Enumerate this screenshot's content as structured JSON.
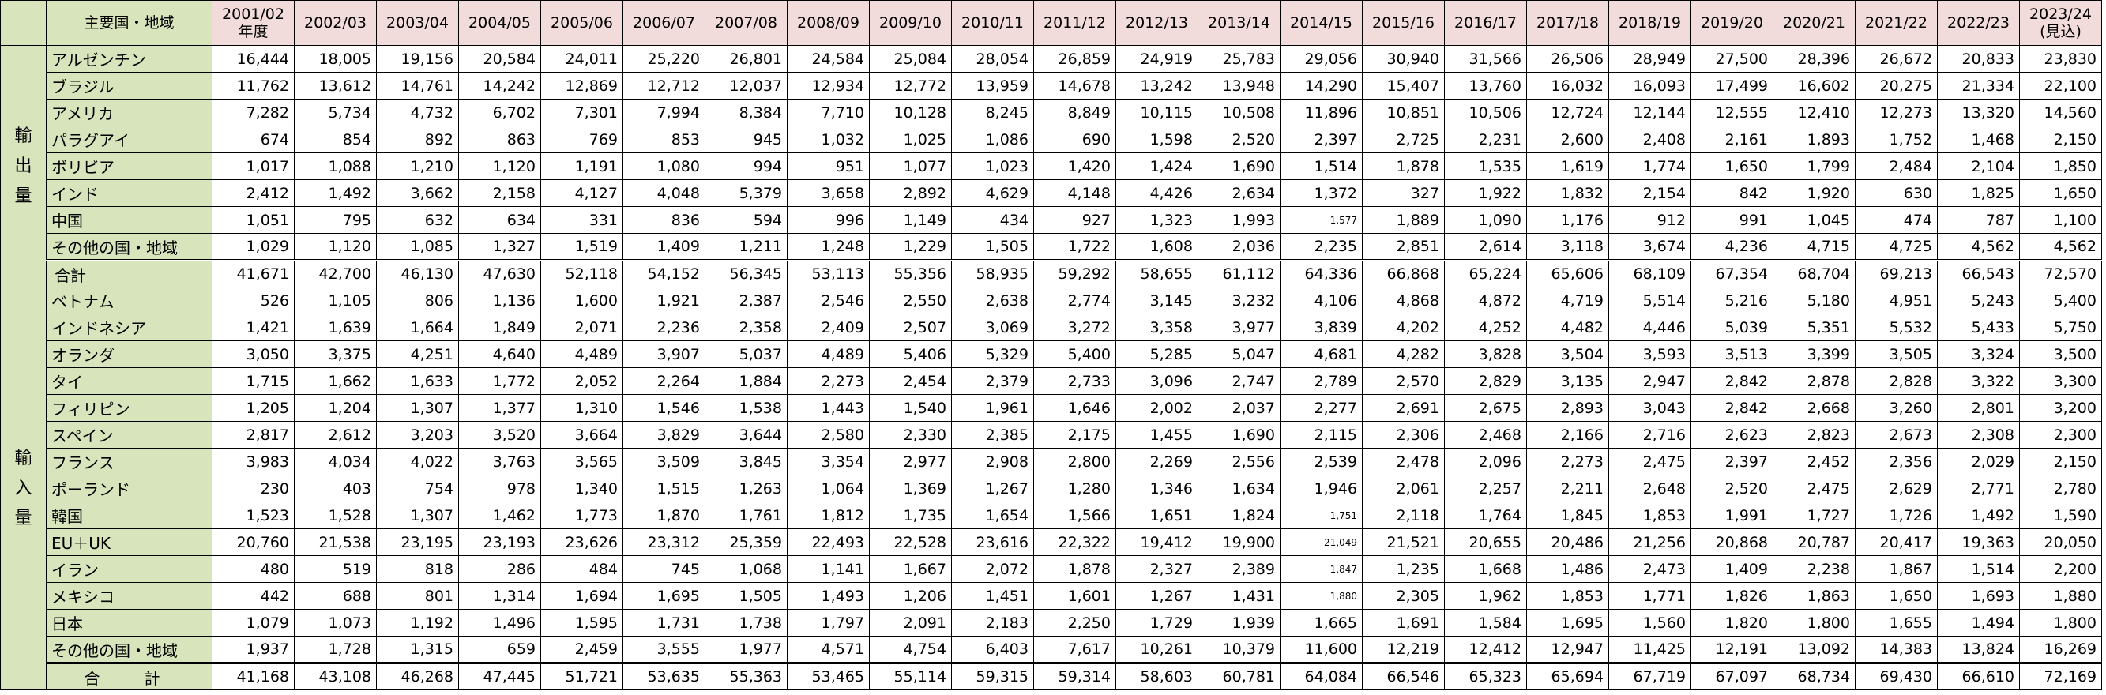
{
  "header": {
    "region_label": "主要国・地域",
    "years": [
      "2001/02\n年度",
      "2002/03",
      "2003/04",
      "2004/05",
      "2005/06",
      "2006/07",
      "2007/08",
      "2008/09",
      "2009/10",
      "2010/11",
      "2011/12",
      "2012/13",
      "2013/14",
      "2014/15",
      "2015/16",
      "2016/17",
      "2017/18",
      "2018/19",
      "2019/20",
      "2020/21",
      "2021/22",
      "2022/23",
      "2023/24\n(見込)"
    ]
  },
  "groups": [
    {
      "label": "輸\n出\n量",
      "rows": [
        {
          "name": "アルゼンチン",
          "values": [
            "16,444",
            "18,005",
            "19,156",
            "20,584",
            "24,011",
            "25,220",
            "26,801",
            "24,584",
            "25,084",
            "28,054",
            "26,859",
            "24,919",
            "25,783",
            "29,056",
            "30,940",
            "31,566",
            "26,506",
            "28,949",
            "27,500",
            "28,396",
            "26,672",
            "20,833",
            "23,830"
          ]
        },
        {
          "name": "ブラジル",
          "values": [
            "11,762",
            "13,612",
            "14,761",
            "14,242",
            "12,869",
            "12,712",
            "12,037",
            "12,934",
            "12,772",
            "13,959",
            "14,678",
            "13,242",
            "13,948",
            "14,290",
            "15,407",
            "13,760",
            "16,032",
            "16,093",
            "17,499",
            "16,602",
            "20,275",
            "21,334",
            "22,100"
          ]
        },
        {
          "name": "アメリカ",
          "values": [
            "7,282",
            "5,734",
            "4,732",
            "6,702",
            "7,301",
            "7,994",
            "8,384",
            "7,710",
            "10,128",
            "8,245",
            "8,849",
            "10,115",
            "10,508",
            "11,896",
            "10,851",
            "10,506",
            "12,724",
            "12,144",
            "12,555",
            "12,410",
            "12,273",
            "13,320",
            "14,560"
          ]
        },
        {
          "name": "パラグアイ",
          "values": [
            "674",
            "854",
            "892",
            "863",
            "769",
            "853",
            "945",
            "1,032",
            "1,025",
            "1,086",
            "690",
            "1,598",
            "2,520",
            "2,397",
            "2,725",
            "2,231",
            "2,600",
            "2,408",
            "2,161",
            "1,893",
            "1,752",
            "1,468",
            "2,150"
          ]
        },
        {
          "name": "ボリビア",
          "values": [
            "1,017",
            "1,088",
            "1,210",
            "1,120",
            "1,191",
            "1,080",
            "994",
            "951",
            "1,077",
            "1,023",
            "1,420",
            "1,424",
            "1,690",
            "1,514",
            "1,878",
            "1,535",
            "1,619",
            "1,774",
            "1,650",
            "1,799",
            "2,484",
            "2,104",
            "1,850"
          ]
        },
        {
          "name": "インド",
          "values": [
            "2,412",
            "1,492",
            "3,662",
            "2,158",
            "4,127",
            "4,048",
            "5,379",
            "3,658",
            "2,892",
            "4,629",
            "4,148",
            "4,426",
            "2,634",
            "1,372",
            "327",
            "1,922",
            "1,832",
            "2,154",
            "842",
            "1,920",
            "630",
            "1,825",
            "1,650"
          ]
        },
        {
          "name": "中国",
          "values": [
            "1,051",
            "795",
            "632",
            "634",
            "331",
            "836",
            "594",
            "996",
            "1,149",
            "434",
            "927",
            "1,323",
            "1,993",
            "1,577",
            "1,889",
            "1,090",
            "1,176",
            "912",
            "991",
            "1,045",
            "474",
            "787",
            "1,100"
          ]
        },
        {
          "name": "その他の国・地域",
          "values": [
            "1,029",
            "1,120",
            "1,085",
            "1,327",
            "1,519",
            "1,409",
            "1,211",
            "1,248",
            "1,229",
            "1,505",
            "1,722",
            "1,608",
            "2,036",
            "2,235",
            "2,851",
            "2,614",
            "3,118",
            "3,674",
            "4,236",
            "4,715",
            "4,725",
            "4,562",
            "4,562"
          ]
        }
      ],
      "total": {
        "name": "合計",
        "values": [
          "41,671",
          "42,700",
          "46,130",
          "47,630",
          "52,118",
          "54,152",
          "56,345",
          "53,113",
          "55,356",
          "58,935",
          "59,292",
          "58,655",
          "61,112",
          "64,336",
          "66,868",
          "65,224",
          "65,606",
          "68,109",
          "67,354",
          "68,704",
          "69,213",
          "66,543",
          "72,570"
        ]
      }
    },
    {
      "label": "輸\n入\n量",
      "rows": [
        {
          "name": "ベトナム",
          "values": [
            "526",
            "1,105",
            "806",
            "1,136",
            "1,600",
            "1,921",
            "2,387",
            "2,546",
            "2,550",
            "2,638",
            "2,774",
            "3,145",
            "3,232",
            "4,106",
            "4,868",
            "4,872",
            "4,719",
            "5,514",
            "5,216",
            "5,180",
            "4,951",
            "5,243",
            "5,400"
          ]
        },
        {
          "name": "インドネシア",
          "values": [
            "1,421",
            "1,639",
            "1,664",
            "1,849",
            "2,071",
            "2,236",
            "2,358",
            "2,409",
            "2,507",
            "3,069",
            "3,272",
            "3,358",
            "3,977",
            "3,839",
            "4,202",
            "4,252",
            "4,482",
            "4,446",
            "5,039",
            "5,351",
            "5,532",
            "5,433",
            "5,750"
          ]
        },
        {
          "name": "オランダ",
          "values": [
            "3,050",
            "3,375",
            "4,251",
            "4,640",
            "4,489",
            "3,907",
            "5,037",
            "4,489",
            "5,406",
            "5,329",
            "5,400",
            "5,285",
            "5,047",
            "4,681",
            "4,282",
            "3,828",
            "3,504",
            "3,593",
            "3,513",
            "3,399",
            "3,505",
            "3,324",
            "3,500"
          ]
        },
        {
          "name": "タイ",
          "values": [
            "1,715",
            "1,662",
            "1,633",
            "1,772",
            "2,052",
            "2,264",
            "1,884",
            "2,273",
            "2,454",
            "2,379",
            "2,733",
            "3,096",
            "2,747",
            "2,789",
            "2,570",
            "2,829",
            "3,135",
            "2,947",
            "2,842",
            "2,878",
            "2,828",
            "3,322",
            "3,300"
          ]
        },
        {
          "name": "フィリピン",
          "values": [
            "1,205",
            "1,204",
            "1,307",
            "1,377",
            "1,310",
            "1,546",
            "1,538",
            "1,443",
            "1,540",
            "1,961",
            "1,646",
            "2,002",
            "2,037",
            "2,277",
            "2,691",
            "2,675",
            "2,893",
            "3,043",
            "2,842",
            "2,668",
            "3,260",
            "2,801",
            "3,200"
          ]
        },
        {
          "name": "スペイン",
          "values": [
            "2,817",
            "2,612",
            "3,203",
            "3,520",
            "3,664",
            "3,829",
            "3,644",
            "2,580",
            "2,330",
            "2,385",
            "2,175",
            "1,455",
            "1,690",
            "2,115",
            "2,306",
            "2,468",
            "2,166",
            "2,716",
            "2,623",
            "2,823",
            "2,673",
            "2,308",
            "2,300"
          ]
        },
        {
          "name": "フランス",
          "values": [
            "3,983",
            "4,034",
            "4,022",
            "3,763",
            "3,565",
            "3,509",
            "3,845",
            "3,354",
            "2,977",
            "2,908",
            "2,800",
            "2,269",
            "2,556",
            "2,539",
            "2,478",
            "2,096",
            "2,273",
            "2,475",
            "2,397",
            "2,452",
            "2,356",
            "2,029",
            "2,150"
          ]
        },
        {
          "name": "ポーランド",
          "values": [
            "230",
            "403",
            "754",
            "978",
            "1,340",
            "1,515",
            "1,263",
            "1,064",
            "1,369",
            "1,267",
            "1,280",
            "1,346",
            "1,634",
            "1,946",
            "2,061",
            "2,257",
            "2,211",
            "2,648",
            "2,520",
            "2,475",
            "2,629",
            "2,771",
            "2,780"
          ]
        },
        {
          "name": "韓国",
          "values": [
            "1,523",
            "1,528",
            "1,307",
            "1,462",
            "1,773",
            "1,870",
            "1,761",
            "1,812",
            "1,735",
            "1,654",
            "1,566",
            "1,651",
            "1,824",
            "1,751",
            "2,118",
            "1,764",
            "1,845",
            "1,853",
            "1,991",
            "1,727",
            "1,726",
            "1,492",
            "1,590"
          ]
        },
        {
          "name": "EU＋UK",
          "values": [
            "20,760",
            "21,538",
            "23,195",
            "23,193",
            "23,626",
            "23,312",
            "25,359",
            "22,493",
            "22,528",
            "23,616",
            "22,322",
            "19,412",
            "19,900",
            "21,049",
            "21,521",
            "20,655",
            "20,486",
            "21,256",
            "20,868",
            "20,787",
            "20,417",
            "19,363",
            "20,050"
          ]
        },
        {
          "name": "イラン",
          "values": [
            "480",
            "519",
            "818",
            "286",
            "484",
            "745",
            "1,068",
            "1,141",
            "1,667",
            "2,072",
            "1,878",
            "2,327",
            "2,389",
            "1,847",
            "1,235",
            "1,668",
            "1,486",
            "2,473",
            "1,409",
            "2,238",
            "1,867",
            "1,514",
            "2,200"
          ]
        },
        {
          "name": "メキシコ",
          "values": [
            "442",
            "688",
            "801",
            "1,314",
            "1,694",
            "1,695",
            "1,505",
            "1,493",
            "1,206",
            "1,451",
            "1,601",
            "1,267",
            "1,431",
            "1,880",
            "2,305",
            "1,962",
            "1,853",
            "1,771",
            "1,826",
            "1,863",
            "1,650",
            "1,693",
            "1,880"
          ]
        },
        {
          "name": "日本",
          "values": [
            "1,079",
            "1,073",
            "1,192",
            "1,496",
            "1,595",
            "1,731",
            "1,738",
            "1,797",
            "2,091",
            "2,183",
            "2,250",
            "1,729",
            "1,939",
            "1,665",
            "1,691",
            "1,584",
            "1,695",
            "1,560",
            "1,820",
            "1,800",
            "1,655",
            "1,494",
            "1,800"
          ]
        },
        {
          "name": "その他の国・地域",
          "values": [
            "1,937",
            "1,728",
            "1,315",
            "659",
            "2,459",
            "3,555",
            "1,977",
            "4,571",
            "4,754",
            "6,403",
            "7,617",
            "10,261",
            "10,379",
            "11,600",
            "12,219",
            "12,412",
            "12,947",
            "11,425",
            "12,191",
            "13,092",
            "14,383",
            "13,824",
            "16,269"
          ]
        }
      ],
      "total": {
        "name": "合　計",
        "values": [
          "41,168",
          "43,108",
          "46,268",
          "47,445",
          "51,721",
          "53,635",
          "55,363",
          "53,465",
          "55,114",
          "59,315",
          "59,314",
          "58,603",
          "60,781",
          "64,084",
          "66,546",
          "65,323",
          "65,694",
          "67,719",
          "67,097",
          "68,734",
          "69,430",
          "66,610",
          "72,169"
        ]
      }
    }
  ]
}
